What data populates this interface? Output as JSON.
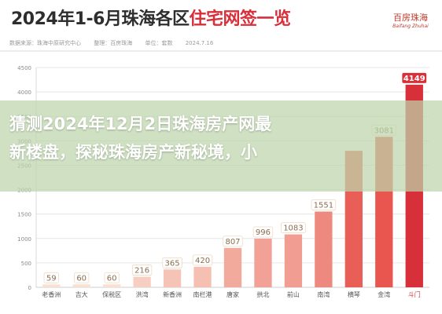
{
  "header": {
    "title_part1": "2024年1-6月珠海各区",
    "title_part2": "住宅网签一览",
    "meta": [
      "数据来源：珠海中原研究中心",
      "整理：百房珠海",
      "单位：套数",
      "2024.7.16"
    ],
    "logo_text": "百房珠海",
    "logo_subtext": "Baifang Zhuhai"
  },
  "banner": {
    "line1": "猜测2024年12月2日珠海房产网最",
    "line2": "新楼盘，探秘珠海房产新秘境，小"
  },
  "colors": {
    "bar_low": "#fbeedd",
    "bar_high": "#e8564f",
    "highlight": "#d8303a",
    "grid": "#e6e6e6",
    "axis_text": "#8a8a8a"
  },
  "chart_data": {
    "type": "bar",
    "categories": [
      "老香洲",
      "吉大",
      "保税区",
      "洪湾",
      "新香洲",
      "南栏港",
      "唐家",
      "拱北",
      "前山",
      "南湾",
      "横琴",
      "金湾",
      "斗门"
    ],
    "values": [
      59,
      60,
      60,
      216,
      365,
      420,
      807,
      996,
      1083,
      1551,
      2795,
      3081,
      4149
    ],
    "data_labels": [
      "59",
      "60",
      "60",
      "216",
      "365",
      "420",
      "807",
      "996",
      "1083",
      "1551",
      "",
      "3081",
      "4149"
    ],
    "ylim": [
      0,
      4500
    ],
    "yticks": [
      0,
      500,
      1000,
      1500,
      2000,
      2500,
      3000,
      3500,
      4000,
      4500
    ],
    "grid": true,
    "highlight_last": true
  }
}
